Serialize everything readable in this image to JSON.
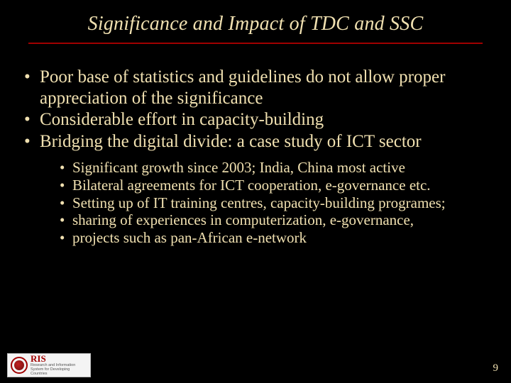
{
  "colors": {
    "background": "#000000",
    "text": "#f0e0b0",
    "accent": "#a00000"
  },
  "title": "Significance and Impact of TDC and SSC",
  "bullets": [
    "Poor base of statistics and guidelines do not allow proper appreciation of the significance",
    "Considerable effort in capacity-building",
    "Bridging the digital divide: a case study of ICT sector"
  ],
  "sub_bullets": [
    "Significant growth since 2003; India, China most active",
    "Bilateral agreements for ICT cooperation, e-governance etc.",
    "Setting up of IT training centres, capacity-building programes;",
    "sharing of experiences in computerization, e-governance,",
    "projects such as pan-African e-network"
  ],
  "logo": {
    "acronym": "RIS",
    "tagline": "Research and Information System for Developing Countries"
  },
  "page_number": "9"
}
